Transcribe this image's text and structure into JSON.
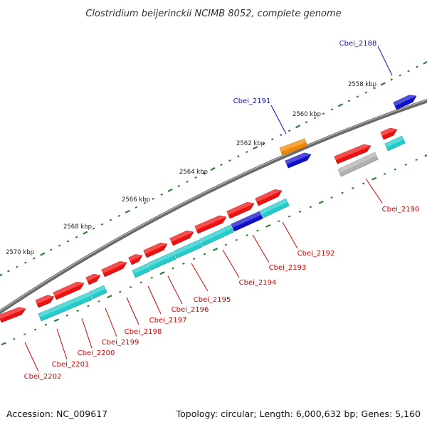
{
  "title": "Clostridium beijerinckii NCIMB 8052, complete genome",
  "footer": {
    "accession": "Accession: NC_009617",
    "summary": "Topology: circular; Length: 6,000,632 bp; Genes: 5,160"
  },
  "colors": {
    "backbone": "#7a7a7a",
    "ticks": "#2e7d32",
    "gene_red": "#ee1111",
    "gene_cyan": "#22cccc",
    "gene_blue": "#1010cc",
    "gene_orange": "#f08800",
    "gene_gray": "#b0b0b0",
    "label_blue": "#1010c0",
    "label_red": "#d00000"
  },
  "scale_labels": [
    "2558 kbp",
    "2560 kbp",
    "2562 kbp",
    "2564 kbp",
    "2566 kbp",
    "2568 kbp",
    "2570 kbp"
  ],
  "gene_labels": [
    {
      "text": "Cbei_2188",
      "color": "blue"
    },
    {
      "text": "Cbei_2191",
      "color": "blue"
    },
    {
      "text": "Cbei_2190",
      "color": "red"
    },
    {
      "text": "Cbei_2192",
      "color": "red"
    },
    {
      "text": "Cbei_2193",
      "color": "red"
    },
    {
      "text": "Cbei_2194",
      "color": "red"
    },
    {
      "text": "Cbei_2195",
      "color": "red"
    },
    {
      "text": "Cbei_2196",
      "color": "red"
    },
    {
      "text": "Cbei_2197",
      "color": "red"
    },
    {
      "text": "Cbei_2198",
      "color": "red"
    },
    {
      "text": "Cbei_2199",
      "color": "red"
    },
    {
      "text": "Cbei_2200",
      "color": "red"
    },
    {
      "text": "Cbei_2201",
      "color": "red"
    },
    {
      "text": "Cbei_2202",
      "color": "red"
    }
  ]
}
